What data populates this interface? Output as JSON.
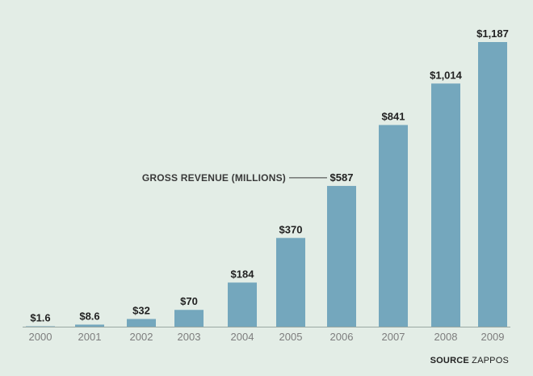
{
  "chart_data": {
    "type": "bar",
    "title": "",
    "series_label": "GROSS REVENUE (MILLIONS)",
    "categories": [
      "2000",
      "2001",
      "2002",
      "2003",
      "2004",
      "2005",
      "2006",
      "2007",
      "2008",
      "2009"
    ],
    "values": [
      1.6,
      8.6,
      32,
      70,
      184,
      370,
      587,
      841,
      1014,
      1187
    ],
    "value_labels": [
      "$1.6",
      "$8.6",
      "$32",
      "$70",
      "$184",
      "$370",
      "$587",
      "$841",
      "$1,014",
      "$1,187"
    ],
    "annotation_category": "2006",
    "xlabel": "",
    "ylabel": "",
    "ylim": [
      0,
      1187
    ],
    "grid": false,
    "colors": {
      "bar": "#74a7bd",
      "background": "#e3ede6"
    }
  },
  "source": {
    "label": "SOURCE",
    "name": "ZAPPOS"
  }
}
